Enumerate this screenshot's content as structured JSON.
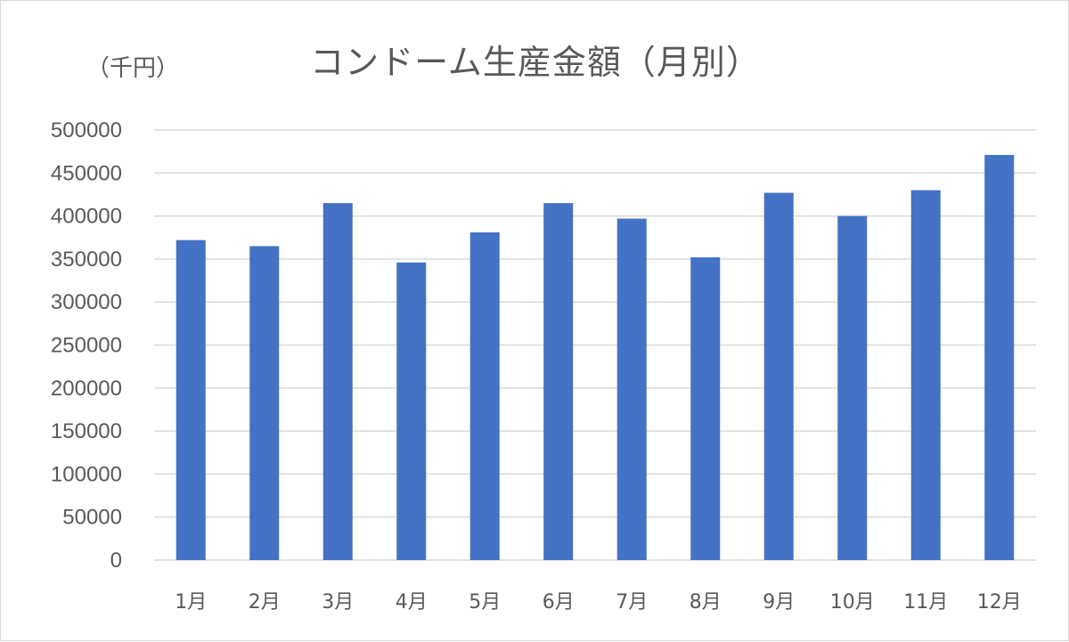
{
  "chart_data": {
    "type": "bar",
    "title": "コンドーム生産金額（月別）",
    "ylabel": "（千円）",
    "xlabel": "",
    "categories": [
      "1月",
      "2月",
      "3月",
      "4月",
      "5月",
      "6月",
      "7月",
      "8月",
      "9月",
      "10月",
      "11月",
      "12月"
    ],
    "values": [
      372000,
      365000,
      415000,
      346000,
      381000,
      415000,
      397000,
      352000,
      427000,
      400000,
      430000,
      471000
    ],
    "ylim": [
      0,
      500000
    ],
    "yticks": [
      "0",
      "50000",
      "100000",
      "150000",
      "200000",
      "250000",
      "300000",
      "350000",
      "400000",
      "450000",
      "500000"
    ],
    "grid": true,
    "legend": "none",
    "bar_color": "#4472c4",
    "grid_color": "#d9d9d9"
  }
}
